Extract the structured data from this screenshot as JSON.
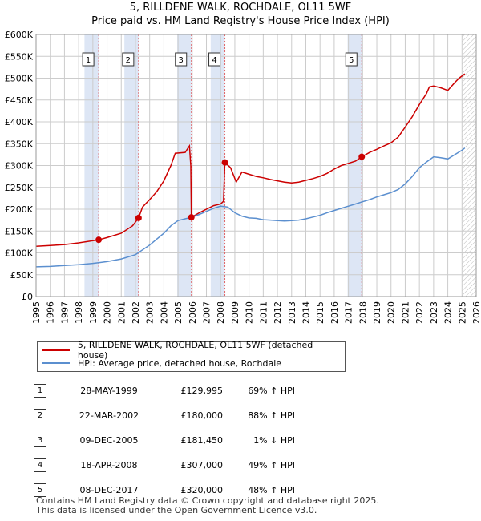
{
  "header": {
    "title": "5, RILLDENE WALK, ROCHDALE, OL11 5WF",
    "subtitle": "Price paid vs. HM Land Registry's House Price Index (HPI)"
  },
  "legend": {
    "series_property": "5, RILLDENE WALK, ROCHDALE, OL11 5WF (detached house)",
    "series_hpi": "HPI: Average price, detached house, Rochdale"
  },
  "transactions": [
    {
      "num": "1",
      "date": "28-MAY-1999",
      "price": "£129,995",
      "hpi": "69% ↑ HPI"
    },
    {
      "num": "2",
      "date": "22-MAR-2002",
      "price": "£180,000",
      "hpi": "88% ↑ HPI"
    },
    {
      "num": "3",
      "date": "09-DEC-2005",
      "price": "£181,450",
      "hpi": "1% ↓ HPI"
    },
    {
      "num": "4",
      "date": "18-APR-2008",
      "price": "£307,000",
      "hpi": "49% ↑ HPI"
    },
    {
      "num": "5",
      "date": "08-DEC-2017",
      "price": "£320,000",
      "hpi": "48% ↑ HPI"
    }
  ],
  "footer": {
    "line1": "Contains HM Land Registry data © Crown copyright and database right 2025.",
    "line2": "This data is licensed under the Open Government Licence v3.0."
  },
  "chart_data": {
    "type": "line",
    "ylim": [
      0,
      600000
    ],
    "xlim": [
      1995,
      2026
    ],
    "y_ticks": [
      {
        "v": 0,
        "label": "£0"
      },
      {
        "v": 50000,
        "label": "£50K"
      },
      {
        "v": 100000,
        "label": "£100K"
      },
      {
        "v": 150000,
        "label": "£150K"
      },
      {
        "v": 200000,
        "label": "£200K"
      },
      {
        "v": 250000,
        "label": "£250K"
      },
      {
        "v": 300000,
        "label": "£300K"
      },
      {
        "v": 350000,
        "label": "£350K"
      },
      {
        "v": 400000,
        "label": "£400K"
      },
      {
        "v": 450000,
        "label": "£450K"
      },
      {
        "v": 500000,
        "label": "£500K"
      },
      {
        "v": 550000,
        "label": "£550K"
      },
      {
        "v": 600000,
        "label": "£600K"
      }
    ],
    "x_ticks": [
      "1995",
      "1996",
      "1997",
      "1998",
      "1999",
      "2000",
      "2001",
      "2002",
      "2003",
      "2004",
      "2005",
      "2006",
      "2007",
      "2008",
      "2009",
      "2010",
      "2011",
      "2012",
      "2013",
      "2014",
      "2015",
      "2016",
      "2017",
      "2018",
      "2019",
      "2020",
      "2021",
      "2022",
      "2023",
      "2024",
      "2025",
      "2026"
    ],
    "colors": {
      "property": "#cc0000",
      "hpi": "#5b8fcf",
      "band": "#dde6f5",
      "grid": "#cccccc",
      "marker_line": "#e06666"
    },
    "sales": [
      {
        "label": "1",
        "date": 1999.41,
        "price": 129995
      },
      {
        "label": "2",
        "date": 2002.22,
        "price": 180000
      },
      {
        "label": "3",
        "date": 2005.94,
        "price": 181450
      },
      {
        "label": "4",
        "date": 2008.3,
        "price": 307000
      },
      {
        "label": "5",
        "date": 2017.94,
        "price": 320000
      }
    ],
    "series": [
      {
        "name": "5, RILLDENE WALK, ROCHDALE, OL11 5WF (detached house)",
        "key": "property",
        "points": [
          [
            1995.0,
            115000
          ],
          [
            1996.0,
            117000
          ],
          [
            1997.0,
            119000
          ],
          [
            1998.0,
            123000
          ],
          [
            1999.41,
            129995
          ],
          [
            2000.0,
            135000
          ],
          [
            2001.0,
            145000
          ],
          [
            2001.8,
            162000
          ],
          [
            2002.22,
            180000
          ],
          [
            2002.5,
            205000
          ],
          [
            2003.0,
            222000
          ],
          [
            2003.5,
            240000
          ],
          [
            2004.0,
            265000
          ],
          [
            2004.5,
            300000
          ],
          [
            2004.8,
            328000
          ],
          [
            2005.5,
            330000
          ],
          [
            2005.8,
            345000
          ],
          [
            2005.9,
            300000
          ],
          [
            2005.94,
            181450
          ],
          [
            2006.5,
            192000
          ],
          [
            2007.0,
            200000
          ],
          [
            2007.5,
            208000
          ],
          [
            2008.0,
            212000
          ],
          [
            2008.2,
            218000
          ],
          [
            2008.3,
            307000
          ],
          [
            2008.7,
            295000
          ],
          [
            2009.1,
            262000
          ],
          [
            2009.5,
            285000
          ],
          [
            2010.0,
            280000
          ],
          [
            2010.5,
            275000
          ],
          [
            2011.0,
            272000
          ],
          [
            2011.5,
            268000
          ],
          [
            2012.0,
            265000
          ],
          [
            2012.5,
            262000
          ],
          [
            2013.0,
            260000
          ],
          [
            2013.5,
            262000
          ],
          [
            2014.0,
            266000
          ],
          [
            2014.5,
            270000
          ],
          [
            2015.0,
            275000
          ],
          [
            2015.5,
            282000
          ],
          [
            2016.0,
            292000
          ],
          [
            2016.5,
            300000
          ],
          [
            2017.0,
            305000
          ],
          [
            2017.5,
            310000
          ],
          [
            2017.94,
            320000
          ],
          [
            2018.5,
            330000
          ],
          [
            2019.0,
            337000
          ],
          [
            2019.5,
            345000
          ],
          [
            2020.0,
            352000
          ],
          [
            2020.5,
            365000
          ],
          [
            2021.0,
            388000
          ],
          [
            2021.5,
            412000
          ],
          [
            2022.0,
            440000
          ],
          [
            2022.5,
            465000
          ],
          [
            2022.7,
            480000
          ],
          [
            2023.0,
            482000
          ],
          [
            2023.5,
            478000
          ],
          [
            2024.0,
            472000
          ],
          [
            2024.5,
            490000
          ],
          [
            2024.8,
            500000
          ],
          [
            2025.2,
            510000
          ]
        ]
      },
      {
        "name": "HPI: Average price, detached house, Rochdale",
        "key": "hpi",
        "points": [
          [
            1995.0,
            68000
          ],
          [
            1996.0,
            69000
          ],
          [
            1997.0,
            71000
          ],
          [
            1998.0,
            73000
          ],
          [
            1999.0,
            76000
          ],
          [
            2000.0,
            80000
          ],
          [
            2001.0,
            86000
          ],
          [
            2002.0,
            96000
          ],
          [
            2003.0,
            118000
          ],
          [
            2004.0,
            145000
          ],
          [
            2004.5,
            162000
          ],
          [
            2005.0,
            174000
          ],
          [
            2005.5,
            178000
          ],
          [
            2006.0,
            182000
          ],
          [
            2006.5,
            188000
          ],
          [
            2007.0,
            195000
          ],
          [
            2007.5,
            202000
          ],
          [
            2008.0,
            207000
          ],
          [
            2008.5,
            205000
          ],
          [
            2009.0,
            192000
          ],
          [
            2009.5,
            184000
          ],
          [
            2010.0,
            180000
          ],
          [
            2010.5,
            179000
          ],
          [
            2011.0,
            176000
          ],
          [
            2011.5,
            175000
          ],
          [
            2012.0,
            174000
          ],
          [
            2012.5,
            173000
          ],
          [
            2013.0,
            174000
          ],
          [
            2013.5,
            175000
          ],
          [
            2014.0,
            178000
          ],
          [
            2014.5,
            182000
          ],
          [
            2015.0,
            186000
          ],
          [
            2015.5,
            192000
          ],
          [
            2016.0,
            197000
          ],
          [
            2016.5,
            202000
          ],
          [
            2017.0,
            207000
          ],
          [
            2017.5,
            212000
          ],
          [
            2018.0,
            217000
          ],
          [
            2018.5,
            222000
          ],
          [
            2019.0,
            228000
          ],
          [
            2019.5,
            233000
          ],
          [
            2020.0,
            238000
          ],
          [
            2020.5,
            245000
          ],
          [
            2021.0,
            258000
          ],
          [
            2021.5,
            275000
          ],
          [
            2022.0,
            295000
          ],
          [
            2022.5,
            308000
          ],
          [
            2023.0,
            320000
          ],
          [
            2023.5,
            318000
          ],
          [
            2024.0,
            315000
          ],
          [
            2024.5,
            325000
          ],
          [
            2025.0,
            335000
          ],
          [
            2025.2,
            340000
          ]
        ]
      }
    ]
  }
}
